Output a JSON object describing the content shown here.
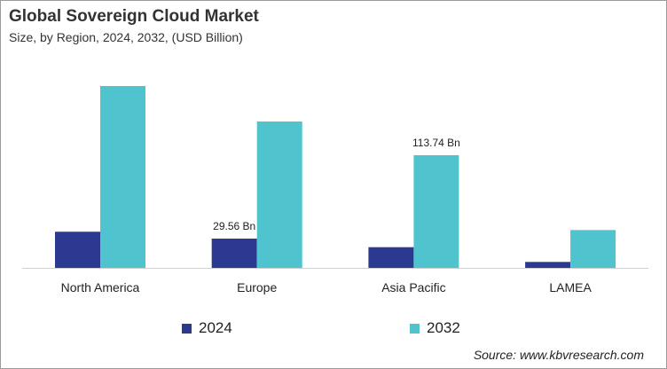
{
  "chart_data": {
    "type": "bar",
    "title": "Global Sovereign Cloud Market",
    "subtitle": "Size, by Region, 2024, 2032, (USD Billion)",
    "categories": [
      "North America",
      "Europe",
      "Asia Pacific",
      "LAMEA"
    ],
    "series": [
      {
        "name": "2024",
        "color": "#2B3990",
        "values": [
          36.5,
          29.56,
          20.9,
          6.0
        ]
      },
      {
        "name": "2032",
        "color": "#4FC4CF",
        "values": [
          183.6,
          147.8,
          113.74,
          38.2
        ]
      }
    ],
    "data_labels": [
      {
        "series": "2024",
        "category": "Europe",
        "text": "29.56 Bn"
      },
      {
        "series": "2032",
        "category": "Asia Pacific",
        "text": "113.74 Bn"
      }
    ],
    "ylim": [
      0,
      200
    ],
    "grid": false,
    "legend": "bottom",
    "source": "Source: www.kbvresearch.com"
  }
}
